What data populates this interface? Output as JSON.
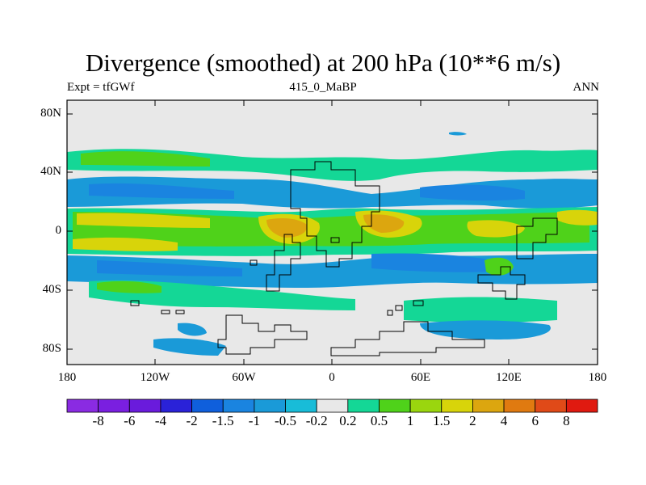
{
  "title": "Divergence (smoothed) at 200 hPa (10**6 m/s)",
  "subtitle_left": "Expt = tfGWf",
  "subtitle_center": "415_0_MaBP",
  "subtitle_right": "ANN",
  "lat_labels": [
    "80N",
    "40N",
    "0",
    "40S",
    "80S"
  ],
  "lon_labels": [
    "180",
    "120W",
    "60W",
    "0",
    "60E",
    "120E",
    "180"
  ],
  "colorbar": {
    "colors": [
      "#8a2be2",
      "#7a1fe0",
      "#6a1bdc",
      "#2a22d8",
      "#0f5fdc",
      "#1a84e0",
      "#1a9ad8",
      "#18bcd8",
      "#e8e8e8",
      "#14d796",
      "#4fd21a",
      "#9ad60e",
      "#d8d40a",
      "#dca60f",
      "#e07a10",
      "#e04a18",
      "#e01a10"
    ],
    "labels": [
      "-8",
      "-6",
      "-4",
      "-2",
      "-1.5",
      "-1",
      "-0.5",
      "-0.2",
      "0.2",
      "0.5",
      "1",
      "1.5",
      "2",
      "4",
      "6",
      "8"
    ]
  },
  "chart_data": {
    "type": "filled-contour-map",
    "title": "Divergence (smoothed) at 200 hPa (10**6 m/s)",
    "variable": "divergence (smoothed)",
    "level": "200 hPa",
    "units": "10**6 m/s",
    "experiment": "tfGWf",
    "case": "415_0_MaBP",
    "season": "ANN",
    "lat_range": [
      -90,
      90
    ],
    "lon_range": [
      -180,
      180
    ],
    "contour_levels": [
      -8,
      -6,
      -4,
      -2,
      -1.5,
      -1,
      -0.5,
      -0.2,
      0.2,
      0.5,
      1,
      1.5,
      2,
      4,
      6,
      8
    ],
    "bands": [
      {
        "lat_max": 90,
        "lat_min": 58,
        "lon_min": -180,
        "lon_max": 180,
        "value": 0
      },
      {
        "lat_max": 58,
        "lat_min": 46,
        "lon_min": -180,
        "lon_max": -90,
        "value": 0.8
      },
      {
        "lat_max": 58,
        "lat_min": 46,
        "lon_min": -90,
        "lon_max": 20,
        "value": 0.4
      },
      {
        "lat_max": 58,
        "lat_min": 46,
        "lon_min": 60,
        "lon_max": 180,
        "value": 0.7
      },
      {
        "lat_max": 42,
        "lat_min": 18,
        "lon_min": -180,
        "lon_max": -30,
        "value": -1.0
      },
      {
        "lat_max": 42,
        "lat_min": 18,
        "lon_min": 30,
        "lon_max": 180,
        "value": -0.8
      },
      {
        "lat_max": 18,
        "lat_min": 8,
        "lon_min": -180,
        "lon_max": 180,
        "value": 1.0
      },
      {
        "lat_max": 14,
        "lat_min": -4,
        "lon_min": -60,
        "lon_max": -20,
        "value": 2.5
      },
      {
        "lat_max": 12,
        "lat_min": -2,
        "lon_min": 10,
        "lon_max": 60,
        "value": 2.2
      },
      {
        "lat_max": -2,
        "lat_min": -12,
        "lon_min": -180,
        "lon_max": -120,
        "value": 2.2
      },
      {
        "lat_max": 6,
        "lat_min": -14,
        "lon_min": -180,
        "lon_max": 180,
        "value": 0.8
      },
      {
        "lat_max": -18,
        "lat_min": -30,
        "lon_min": -180,
        "lon_max": 180,
        "value": -1.1
      },
      {
        "lat_max": -30,
        "lat_min": -46,
        "lon_min": -90,
        "lon_max": 90,
        "value": 0.6
      },
      {
        "lat_max": -46,
        "lat_min": -62,
        "lon_min": 10,
        "lon_max": 100,
        "value": 0.4
      },
      {
        "lat_max": -50,
        "lat_min": -66,
        "lon_min": 60,
        "lon_max": 130,
        "value": -0.4
      },
      {
        "lat_max": -62,
        "lat_min": -90,
        "lon_min": -180,
        "lon_max": 180,
        "value": 0
      }
    ]
  }
}
